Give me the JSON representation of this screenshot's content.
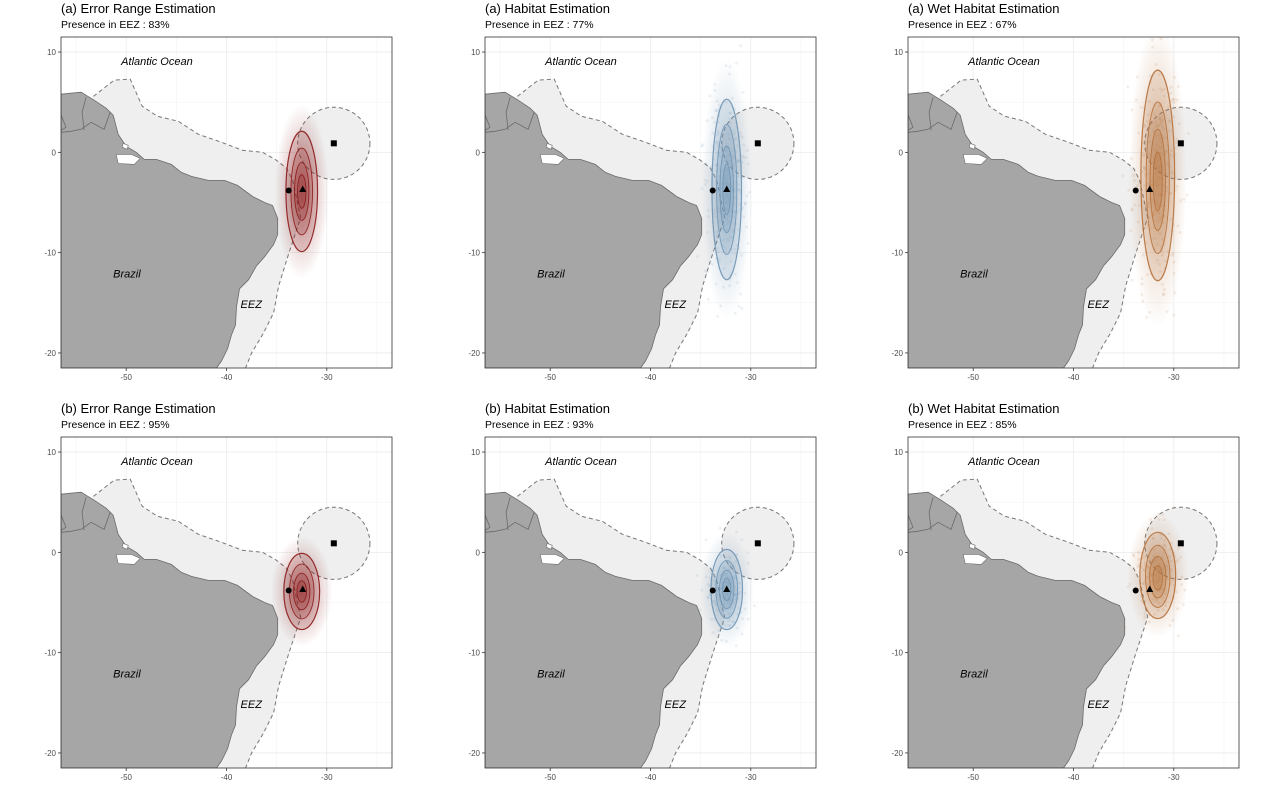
{
  "panels": [
    {
      "title": "(a) Error Range Estimation",
      "subtitle": "Presence in EEZ : 83%",
      "method": "error",
      "variant": "a"
    },
    {
      "title": "(a) Habitat Estimation",
      "subtitle": "Presence in EEZ : 77%",
      "method": "habitat",
      "variant": "a"
    },
    {
      "title": "(a) Wet Habitat Estimation",
      "subtitle": "Presence in EEZ : 67%",
      "method": "wet",
      "variant": "a"
    },
    {
      "title": "(b) Error Range Estimation",
      "subtitle": "Presence in EEZ : 95%",
      "method": "error",
      "variant": "b"
    },
    {
      "title": "(b) Habitat Estimation",
      "subtitle": "Presence in EEZ : 93%",
      "method": "habitat",
      "variant": "b"
    },
    {
      "title": "(b) Wet Habitat Estimation",
      "subtitle": "Presence in EEZ : 85%",
      "method": "wet",
      "variant": "b"
    }
  ],
  "map_labels": {
    "ocean": "Atlantic Ocean",
    "country": "Brazil",
    "eez": "EEZ"
  },
  "axes": {
    "x_ticks": [
      -50,
      -40,
      -30
    ],
    "y_ticks": [
      10,
      0,
      -10,
      -20
    ],
    "xlim": [
      -56.5,
      -23.5
    ],
    "ylim": [
      -21.5,
      11.5
    ]
  },
  "markers": [
    {
      "shape": "circle",
      "lon": -33.8,
      "lat": -3.8
    },
    {
      "shape": "triangle",
      "lon": -32.4,
      "lat": -3.7
    },
    {
      "shape": "square",
      "lon": -29.3,
      "lat": 0.9
    }
  ],
  "colors": {
    "land": "#a6a6a6",
    "eez": "#efefef",
    "error": "#8b1a1a",
    "habitat": "#6e93b3",
    "wet": "#b5703a"
  }
}
